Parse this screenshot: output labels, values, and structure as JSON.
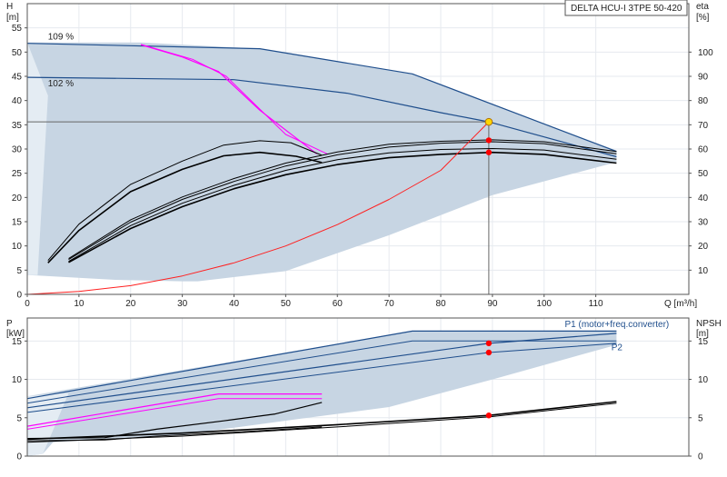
{
  "model_label": "DELTA HCU-I 3TPE 50-420",
  "colors": {
    "envelope": "#c7d5e3",
    "envelope_left": "#e4ecf3",
    "curve_dark": "#1f4e8c",
    "curve_black": "#000000",
    "curve_magenta": "#ff00ff",
    "system_curve": "#ff2020",
    "marker_red": "#ff0000",
    "marker_yellow": "#ffd700",
    "ref_line": "#666666"
  },
  "chart_data": [
    {
      "type": "line",
      "ylabel": "H",
      "yunit": "[m]",
      "ylabel_right": "eta",
      "yunit_right": "[%]",
      "xlabel": "Q [m³/h]",
      "xlim": [
        0,
        128
      ],
      "ylim": [
        0,
        60
      ],
      "ylim_right": [
        0,
        120
      ],
      "xticks": [
        0,
        10,
        20,
        30,
        40,
        50,
        60,
        70,
        80,
        90,
        100,
        110
      ],
      "yticks": [
        0,
        5,
        10,
        15,
        20,
        25,
        30,
        35,
        40,
        45,
        50,
        55
      ],
      "yticks_right": [
        10,
        20,
        30,
        40,
        50,
        60,
        70,
        80,
        90,
        100
      ],
      "annotations": [
        {
          "text": "109 %",
          "x": 4,
          "y": 52.6
        },
        {
          "text": "102 %",
          "x": 4,
          "y": 42.9
        }
      ],
      "envelope": [
        [
          0,
          52
        ],
        [
          22,
          52
        ],
        [
          45,
          50.7
        ],
        [
          74.5,
          45.5
        ],
        [
          114,
          29.7
        ],
        [
          114,
          27.3
        ],
        [
          90,
          20.5
        ],
        [
          70,
          12.2
        ],
        [
          50,
          4.8
        ],
        [
          33,
          2.7
        ],
        [
          30,
          2.7
        ],
        [
          17,
          3
        ],
        [
          2,
          3.9
        ],
        [
          0,
          4
        ]
      ],
      "envelope_left": [
        [
          0,
          52
        ],
        [
          4,
          41
        ],
        [
          2,
          4
        ],
        [
          0,
          4
        ]
      ],
      "operating_point": {
        "x": 89.3,
        "y": 35.6
      },
      "duty_markers": [
        {
          "x": 89.3,
          "y": 31.8
        },
        {
          "x": 89.3,
          "y": 29.3
        }
      ],
      "series": [
        {
          "name": "",
          "color": "dark",
          "width": 1.2,
          "points": [
            [
              0,
              51.8
            ],
            [
              45,
              50.7
            ],
            [
              74.5,
              45.5
            ],
            [
              114,
              29.5
            ]
          ]
        },
        {
          "name": "",
          "color": "dark",
          "width": 1.2,
          "points": [
            [
              0,
              44.8
            ],
            [
              40,
              44.3
            ],
            [
              62,
              41.5
            ],
            [
              80,
              37.5
            ],
            [
              89.3,
              35.6
            ],
            [
              114,
              28.4
            ]
          ]
        },
        {
          "name": "",
          "color": "magenta",
          "width": 1.2,
          "points": [
            [
              22,
              51.5
            ],
            [
              30,
              49
            ],
            [
              37,
              46
            ],
            [
              45,
              38
            ],
            [
              56,
              29
            ]
          ]
        },
        {
          "name": "",
          "color": "magenta",
          "width": 1,
          "points": [
            [
              22,
              51.6
            ],
            [
              32,
              48.5
            ],
            [
              38.5,
              45
            ],
            [
              50,
              33
            ],
            [
              58,
              29
            ]
          ]
        },
        {
          "name": "",
          "color": "black",
          "width": 1,
          "points": [
            [
              4,
              7
            ],
            [
              10,
              14.5
            ],
            [
              20,
              22.7
            ],
            [
              30,
              27.5
            ],
            [
              38,
              30.8
            ],
            [
              45,
              31.7
            ],
            [
              51,
              31.3
            ],
            [
              57,
              28.7
            ]
          ]
        },
        {
          "name": "",
          "color": "black",
          "width": 1.6,
          "points": [
            [
              4,
              6.5
            ],
            [
              10,
              13.2
            ],
            [
              20,
              21.2
            ],
            [
              30,
              25.8
            ],
            [
              38,
              28.6
            ],
            [
              45,
              29.3
            ],
            [
              52,
              28.5
            ],
            [
              57,
              27.2
            ]
          ]
        },
        {
          "name": "",
          "color": "black",
          "width": 1,
          "points": [
            [
              8,
              7.4
            ],
            [
              20,
              15.4
            ],
            [
              30,
              20.1
            ],
            [
              40,
              23.9
            ],
            [
              50,
              27.1
            ],
            [
              60,
              29.4
            ],
            [
              70,
              31
            ],
            [
              80,
              31.6
            ],
            [
              90,
              31.9
            ],
            [
              100,
              31.5
            ],
            [
              114,
              29.5
            ]
          ]
        },
        {
          "name": "",
          "color": "black",
          "width": 1,
          "points": [
            [
              8,
              7.2
            ],
            [
              20,
              14.9
            ],
            [
              30,
              19.6
            ],
            [
              40,
              23.3
            ],
            [
              50,
              26.5
            ],
            [
              60,
              28.8
            ],
            [
              70,
              30.4
            ],
            [
              80,
              31.2
            ],
            [
              90,
              31.5
            ],
            [
              100,
              31.1
            ],
            [
              114,
              29
            ]
          ]
        },
        {
          "name": "",
          "color": "black",
          "width": 1,
          "points": [
            [
              8,
              6.8
            ],
            [
              20,
              14.2
            ],
            [
              30,
              18.8
            ],
            [
              40,
              22.5
            ],
            [
              50,
              25.6
            ],
            [
              60,
              27.8
            ],
            [
              70,
              29.2
            ],
            [
              80,
              29.9
            ],
            [
              90,
              30.1
            ],
            [
              100,
              29.8
            ],
            [
              114,
              27.9
            ]
          ]
        },
        {
          "name": "",
          "color": "black",
          "width": 1.6,
          "points": [
            [
              8,
              6.6
            ],
            [
              20,
              13.6
            ],
            [
              30,
              18.1
            ],
            [
              40,
              21.8
            ],
            [
              50,
              24.7
            ],
            [
              60,
              26.8
            ],
            [
              70,
              28.2
            ],
            [
              80,
              28.9
            ],
            [
              90,
              29.3
            ],
            [
              100,
              28.9
            ],
            [
              114,
              27.1
            ]
          ]
        },
        {
          "name": "",
          "color": "system",
          "width": 1,
          "points": [
            [
              0,
              0
            ],
            [
              10,
              0.6
            ],
            [
              20,
              1.8
            ],
            [
              30,
              3.8
            ],
            [
              40,
              6.5
            ],
            [
              50,
              10
            ],
            [
              60,
              14.4
            ],
            [
              70,
              19.6
            ],
            [
              80,
              25.6
            ],
            [
              89.3,
              35.6
            ]
          ]
        }
      ]
    },
    {
      "type": "line",
      "ylabel": "P",
      "yunit": "[kW]",
      "ylabel_right": "NPSH",
      "yunit_right": "[m]",
      "xlim": [
        0,
        128
      ],
      "ylim": [
        0,
        18
      ],
      "yticks": [
        0,
        5,
        10,
        15
      ],
      "yticks_right": [
        0,
        5,
        10,
        15
      ],
      "legend": [
        {
          "text": "P1 (motor+freq.converter)",
          "x": 104,
          "y": 16.8
        },
        {
          "text": "P2",
          "x": 113,
          "y": 13.8
        }
      ],
      "envelope": [
        [
          0,
          7.8
        ],
        [
          74.5,
          16.3
        ],
        [
          114,
          16.3
        ],
        [
          114,
          14.5
        ],
        [
          90,
          10
        ],
        [
          70,
          6.4
        ],
        [
          52,
          4.8
        ],
        [
          30,
          2.8
        ],
        [
          5,
          1.8
        ],
        [
          3,
          0.3
        ],
        [
          0,
          0
        ]
      ],
      "envelope_left": [
        [
          0,
          7.8
        ],
        [
          8,
          8.2
        ],
        [
          4,
          1.8
        ],
        [
          3,
          0.3
        ],
        [
          0,
          0
        ]
      ],
      "duty_markers": [
        {
          "x": 89.3,
          "y": 14.7
        },
        {
          "x": 89.3,
          "y": 13.5
        },
        {
          "x": 89.3,
          "y": 5.3
        }
      ],
      "series": [
        {
          "name": "",
          "color": "dark",
          "width": 1.2,
          "points": [
            [
              0,
              7.5
            ],
            [
              74.5,
              16.3
            ],
            [
              114,
              16.3
            ]
          ]
        },
        {
          "name": "",
          "color": "dark",
          "width": 1,
          "points": [
            [
              0,
              6.9
            ],
            [
              74.5,
              15
            ],
            [
              114,
              15
            ]
          ]
        },
        {
          "name": "",
          "color": "dark",
          "width": 1.2,
          "points": [
            [
              0,
              6.3
            ],
            [
              89.3,
              14.7
            ],
            [
              114,
              16
            ]
          ]
        },
        {
          "name": "",
          "color": "dark",
          "width": 1,
          "points": [
            [
              0,
              5.7
            ],
            [
              89.3,
              13.5
            ],
            [
              114,
              14.7
            ]
          ]
        },
        {
          "name": "",
          "color": "magenta",
          "width": 1.2,
          "points": [
            [
              0,
              3.9
            ],
            [
              37,
              8.1
            ],
            [
              57,
              8.1
            ]
          ]
        },
        {
          "name": "",
          "color": "magenta",
          "width": 1,
          "points": [
            [
              0,
              3.5
            ],
            [
              37,
              7.5
            ],
            [
              57,
              7.5
            ]
          ]
        },
        {
          "name": "",
          "color": "black",
          "width": 1.2,
          "points": [
            [
              0,
              2.3
            ],
            [
              15,
              2.4
            ],
            [
              25,
              3.5
            ],
            [
              38,
              4.6
            ],
            [
              48,
              5.5
            ],
            [
              57,
              7
            ]
          ]
        },
        {
          "name": "",
          "color": "black",
          "width": 1,
          "points": [
            [
              0,
              2
            ],
            [
              15,
              2.1
            ],
            [
              25,
              2.6
            ],
            [
              40,
              3.1
            ],
            [
              57,
              3.8
            ]
          ]
        },
        {
          "name": "",
          "color": "black",
          "width": 1.6,
          "points": [
            [
              0,
              2.2
            ],
            [
              30,
              3
            ],
            [
              60,
              4.1
            ],
            [
              89.3,
              5.3
            ],
            [
              114,
              7.1
            ]
          ]
        },
        {
          "name": "",
          "color": "black",
          "width": 1,
          "points": [
            [
              0,
              1.8
            ],
            [
              30,
              2.6
            ],
            [
              60,
              3.8
            ],
            [
              89.3,
              5.1
            ],
            [
              114,
              6.9
            ]
          ]
        }
      ]
    }
  ]
}
